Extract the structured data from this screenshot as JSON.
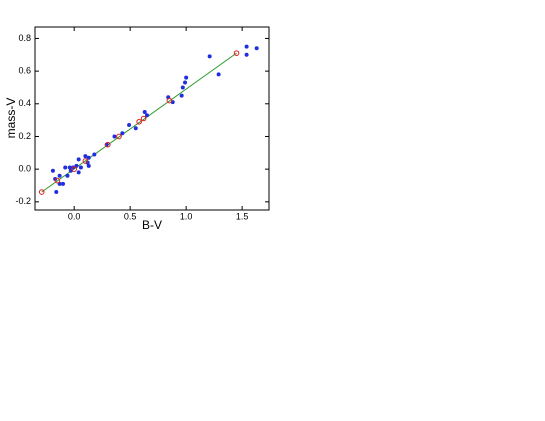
{
  "chart_data": {
    "type": "scatter",
    "x_label": "B-V",
    "y_label": "mass-V",
    "xlim": [
      -0.35,
      1.74
    ],
    "ylim": [
      -0.25,
      0.87
    ],
    "xticks": [
      {
        "value": 0,
        "label": "0.0"
      },
      0.5,
      {
        "value": 1,
        "label": "1.0"
      },
      1.5
    ],
    "yticks": [
      -0.2,
      {
        "value": 0,
        "label": "0.0"
      },
      0.2,
      0.4,
      0.6,
      0.8
    ],
    "series": [
      {
        "type": "line",
        "color": "#2a9a2a",
        "x": [
          -0.29,
          1.45
        ],
        "values": [
          -0.14,
          0.71
        ]
      },
      {
        "type": "scatter",
        "marker": "dot",
        "color": "#1f2fe0",
        "x": [
          -0.19,
          -0.17,
          -0.16,
          -0.13,
          -0.13,
          -0.1,
          -0.08,
          -0.06,
          -0.04,
          -0.03,
          -0.01,
          0.02,
          0.04,
          0.04,
          0.06,
          0.1,
          0.12,
          0.13,
          0.13,
          0.18,
          0.29,
          0.36,
          0.43,
          0.49,
          0.55,
          0.63,
          0.65,
          0.84,
          0.88,
          0.96,
          0.97,
          0.99,
          1.0,
          1.21,
          1.29,
          1.54,
          1.54,
          1.63
        ],
        "values": [
          -0.01,
          -0.06,
          -0.14,
          -0.04,
          -0.09,
          -0.09,
          0.01,
          -0.04,
          0.01,
          -0.01,
          0.01,
          0.02,
          -0.02,
          0.06,
          0.01,
          0.08,
          0.04,
          0.02,
          0.07,
          0.09,
          0.15,
          0.2,
          0.22,
          0.27,
          0.25,
          0.35,
          0.33,
          0.44,
          0.41,
          0.45,
          0.5,
          0.53,
          0.56,
          0.69,
          0.58,
          0.75,
          0.7,
          0.74
        ]
      },
      {
        "type": "scatter",
        "marker": "ring",
        "color": "#e02020",
        "x": [
          -0.29,
          -0.15,
          0.0,
          0.1,
          0.3,
          0.4,
          0.58,
          0.62,
          0.85,
          1.45
        ],
        "values": [
          -0.14,
          -0.07,
          0.0,
          0.05,
          0.15,
          0.2,
          0.29,
          0.31,
          0.42,
          0.71
        ]
      }
    ]
  }
}
